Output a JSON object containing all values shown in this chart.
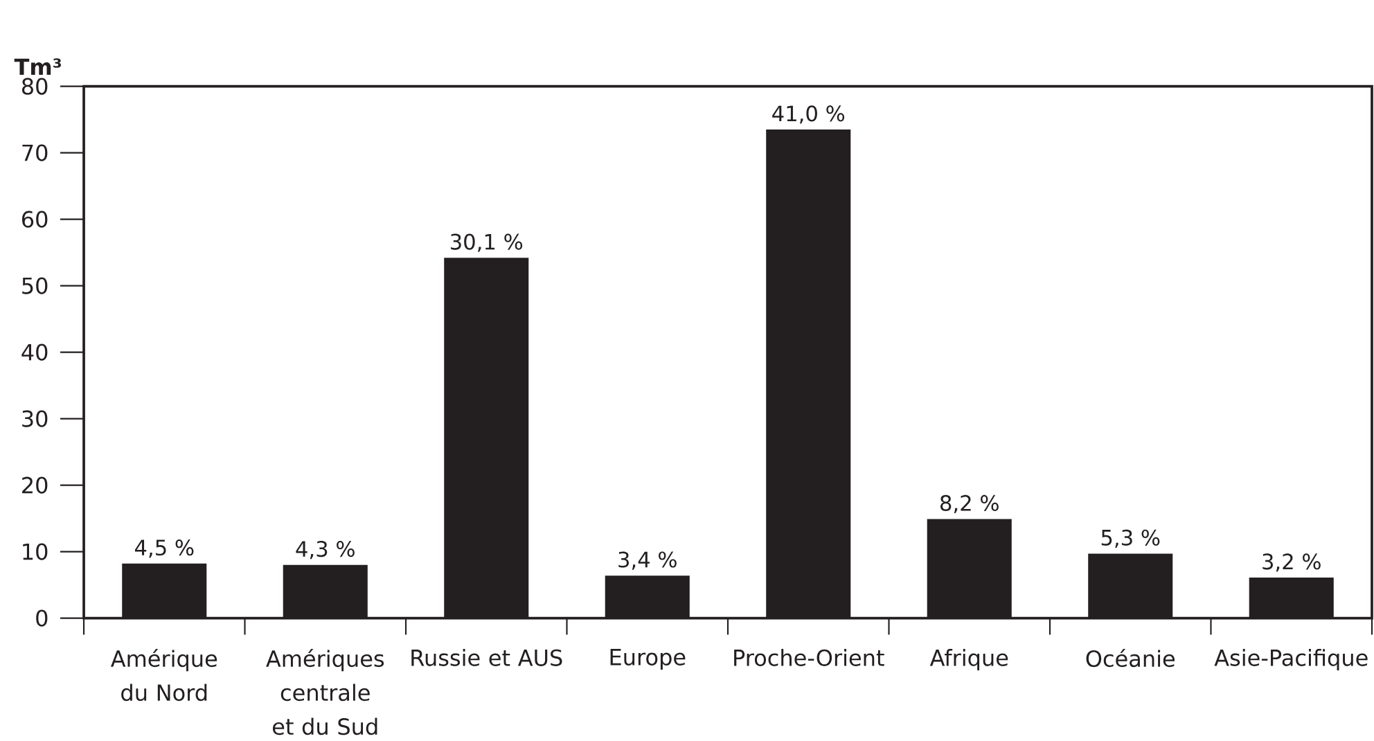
{
  "chart_data": {
    "type": "bar",
    "ylabel": "Tm³",
    "categories": [
      "Amérique du Nord",
      "Amériques centrale et du Sud",
      "Russie et AUS",
      "Europe",
      "Proche-Orient",
      "Afrique",
      "Océanie",
      "Asie-Pacifique"
    ],
    "values": [
      8.2,
      8.0,
      54.2,
      6.4,
      73.5,
      14.9,
      9.7,
      6.1
    ],
    "annotations": [
      {
        "text": "4,5 %",
        "x": "Amérique du Nord",
        "y": 8.2
      },
      {
        "text": "4,3 %",
        "x": "Amériques centrale et du Sud",
        "y": 8.0
      },
      {
        "text": "30,1 %",
        "x": "Russie et AUS",
        "y": 54.2
      },
      {
        "text": "3,4 %",
        "x": "Europe",
        "y": 6.4
      },
      {
        "text": "41,0 %",
        "x": "Proche-Orient",
        "y": 73.5
      },
      {
        "text": "8,2 %",
        "x": "Afrique",
        "y": 14.9
      },
      {
        "text": "5,3 %",
        "x": "Océanie",
        "y": 9.7
      },
      {
        "text": "3,2 %",
        "x": "Asie-Pacifique",
        "y": 6.1
      }
    ],
    "color": "#231f20",
    "ylim": [
      0,
      80
    ],
    "yticks": [
      0,
      10,
      20,
      30,
      40,
      50,
      60,
      70,
      80
    ]
  }
}
